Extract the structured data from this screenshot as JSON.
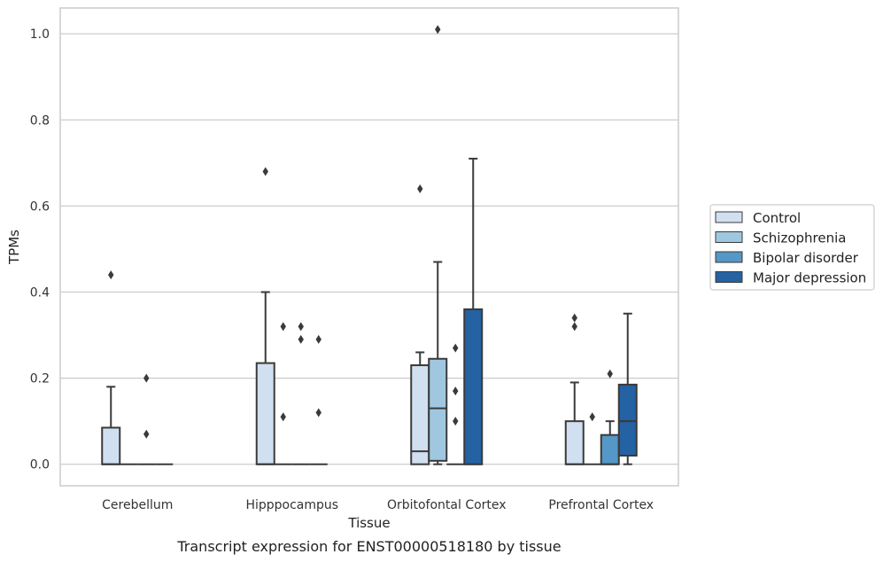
{
  "chart_data": {
    "type": "box",
    "title": "",
    "caption": "Transcript expression for ENST00000518180 by tissue",
    "xlabel": "Tissue",
    "ylabel": "TPMs",
    "ylim": [
      -0.05,
      1.06
    ],
    "yticks": [
      "0.0",
      "0.2",
      "0.4",
      "0.6",
      "0.8",
      "1.0"
    ],
    "grid": "horizontal",
    "legend_position": "right",
    "categories": [
      "Cerebellum",
      "Hipppocampus",
      "Orbitofontal Cortex",
      "Prefrontal Cortex"
    ],
    "series": [
      {
        "name": "Control",
        "color": "#d0e0f0",
        "boxes": [
          {
            "category": "Cerebellum",
            "min": 0.0,
            "q1": 0.0,
            "median": 0.0,
            "q3": 0.085,
            "max": 0.18,
            "outliers": [
              0.44
            ]
          },
          {
            "category": "Hipppocampus",
            "min": 0.0,
            "q1": 0.0,
            "median": 0.0,
            "q3": 0.235,
            "max": 0.4,
            "outliers": [
              0.68
            ]
          },
          {
            "category": "Orbitofontal Cortex",
            "min": 0.0,
            "q1": 0.0,
            "median": 0.03,
            "q3": 0.23,
            "max": 0.26,
            "outliers": [
              0.64
            ]
          },
          {
            "category": "Prefrontal Cortex",
            "min": 0.0,
            "q1": 0.0,
            "median": 0.0,
            "q3": 0.1,
            "max": 0.19,
            "outliers": [
              0.34,
              0.32
            ]
          }
        ]
      },
      {
        "name": "Schizophrenia",
        "color": "#9fc8e0",
        "boxes": [
          {
            "category": "Cerebellum",
            "min": 0.0,
            "q1": 0.0,
            "median": 0.0,
            "q3": 0.0,
            "max": 0.0,
            "outliers": []
          },
          {
            "category": "Hipppocampus",
            "min": 0.0,
            "q1": 0.0,
            "median": 0.0,
            "q3": 0.0,
            "max": 0.0,
            "outliers": [
              0.32,
              0.11
            ]
          },
          {
            "category": "Orbitofontal Cortex",
            "min": 0.0,
            "q1": 0.008,
            "median": 0.13,
            "q3": 0.245,
            "max": 0.47,
            "outliers": [
              1.01
            ]
          },
          {
            "category": "Prefrontal Cortex",
            "min": 0.0,
            "q1": 0.0,
            "median": 0.0,
            "q3": 0.0,
            "max": 0.0,
            "outliers": [
              0.11
            ]
          }
        ]
      },
      {
        "name": "Bipolar disorder",
        "color": "#5597c6",
        "boxes": [
          {
            "category": "Cerebellum",
            "min": 0.0,
            "q1": 0.0,
            "median": 0.0,
            "q3": 0.0,
            "max": 0.0,
            "outliers": [
              0.2,
              0.07
            ]
          },
          {
            "category": "Hipppocampus",
            "min": 0.0,
            "q1": 0.0,
            "median": 0.0,
            "q3": 0.0,
            "max": 0.0,
            "outliers": [
              0.32,
              0.29
            ]
          },
          {
            "category": "Orbitofontal Cortex",
            "min": 0.0,
            "q1": 0.0,
            "median": 0.0,
            "q3": 0.0,
            "max": 0.0,
            "outliers": [
              0.27,
              0.17,
              0.1
            ]
          },
          {
            "category": "Prefrontal Cortex",
            "min": 0.0,
            "q1": 0.0,
            "median": 0.0,
            "q3": 0.068,
            "max": 0.1,
            "outliers": [
              0.21
            ]
          }
        ]
      },
      {
        "name": "Major depression",
        "color": "#2462a3",
        "boxes": [
          {
            "category": "Cerebellum",
            "min": 0.0,
            "q1": 0.0,
            "median": 0.0,
            "q3": 0.0,
            "max": 0.0,
            "outliers": []
          },
          {
            "category": "Hipppocampus",
            "min": 0.0,
            "q1": 0.0,
            "median": 0.0,
            "q3": 0.0,
            "max": 0.0,
            "outliers": [
              0.29,
              0.12
            ]
          },
          {
            "category": "Orbitofontal Cortex",
            "min": 0.0,
            "q1": 0.0,
            "median": 0.0,
            "q3": 0.36,
            "max": 0.71,
            "outliers": []
          },
          {
            "category": "Prefrontal Cortex",
            "min": 0.0,
            "q1": 0.02,
            "median": 0.1,
            "q3": 0.185,
            "max": 0.35,
            "outliers": []
          }
        ]
      }
    ]
  }
}
